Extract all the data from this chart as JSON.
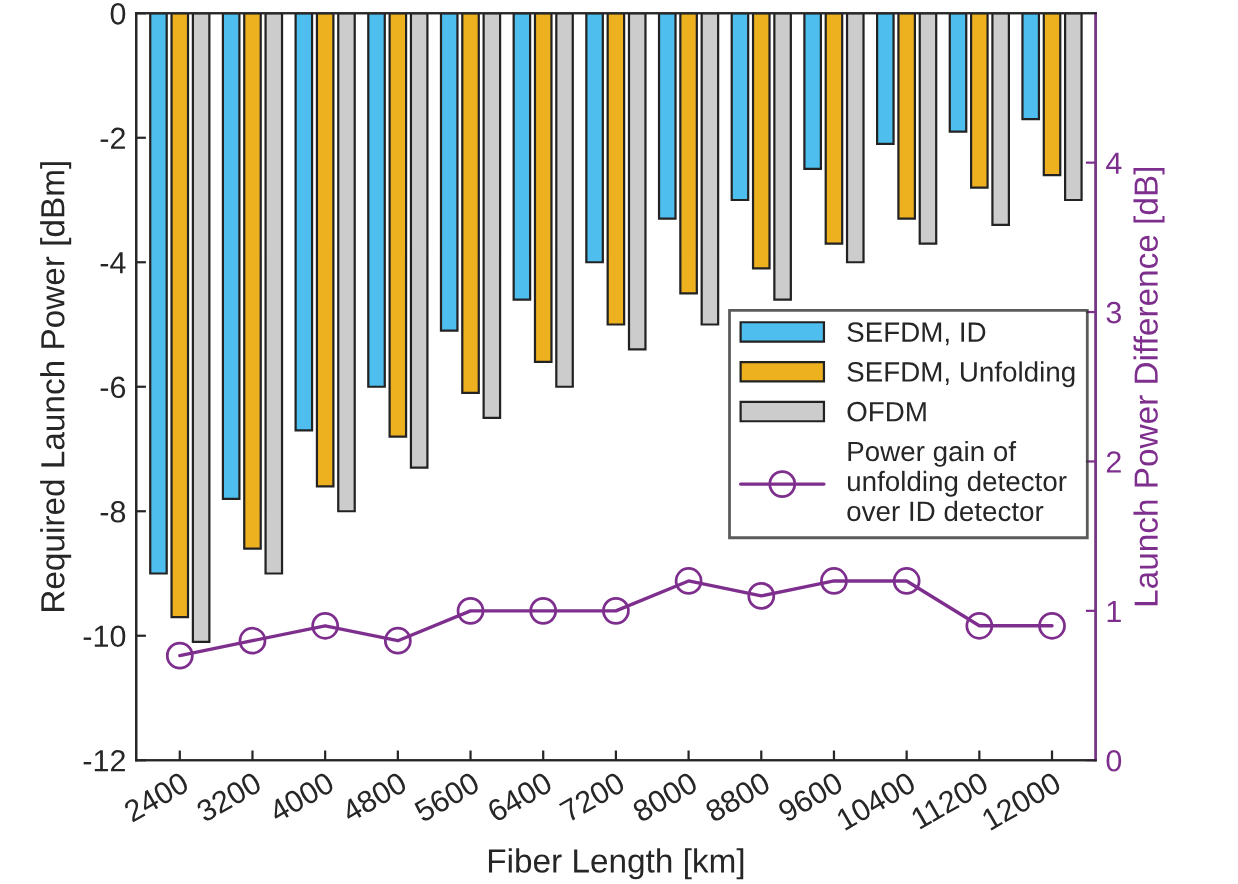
{
  "chart_data": {
    "type": "bar",
    "categories": [
      "2400",
      "3200",
      "4000",
      "4800",
      "5600",
      "6400",
      "7200",
      "8000",
      "8800",
      "9600",
      "10400",
      "11200",
      "12000"
    ],
    "xlabel": "Fiber Length [km]",
    "ylabel": "Required Launch Power [dBm]",
    "y2label": "Launch Power Difference [dB]",
    "ylim": [
      -12,
      0
    ],
    "yticks": [
      -12,
      -10,
      -8,
      -6,
      -4,
      -2,
      0
    ],
    "y2lim": [
      0,
      5
    ],
    "y2ticks": [
      0,
      1,
      2,
      3,
      4
    ],
    "legend": "right",
    "grid": false,
    "series": [
      {
        "name": "SEFDM, ID",
        "color": "#4dbeee",
        "values": [
          -9.0,
          -7.8,
          -6.7,
          -6.0,
          -5.1,
          -4.6,
          -4.0,
          -3.3,
          -3.0,
          -2.5,
          -2.1,
          -1.9,
          -1.7
        ]
      },
      {
        "name": "SEFDM, Unfolding",
        "color": "#edb120",
        "values": [
          -9.7,
          -8.6,
          -7.6,
          -6.8,
          -6.1,
          -5.6,
          -5.0,
          -4.5,
          -4.1,
          -3.7,
          -3.3,
          -2.8,
          -2.6
        ]
      },
      {
        "name": "OFDM",
        "color": "#cccccc",
        "values": [
          -10.1,
          -9.0,
          -8.0,
          -7.3,
          -6.5,
          -6.0,
          -5.4,
          -5.0,
          -4.6,
          -4.0,
          -3.7,
          -3.4,
          -3.0
        ]
      },
      {
        "name": "Power gain of\nunfolding detector\nover ID detector",
        "type": "line",
        "axis": "y2",
        "color": "#7e2f8e",
        "marker": "circle",
        "line_style": "solid",
        "values": [
          0.7,
          0.8,
          0.9,
          0.8,
          1.0,
          1.0,
          1.0,
          1.2,
          1.1,
          1.2,
          1.2,
          0.9,
          0.9
        ]
      }
    ]
  }
}
